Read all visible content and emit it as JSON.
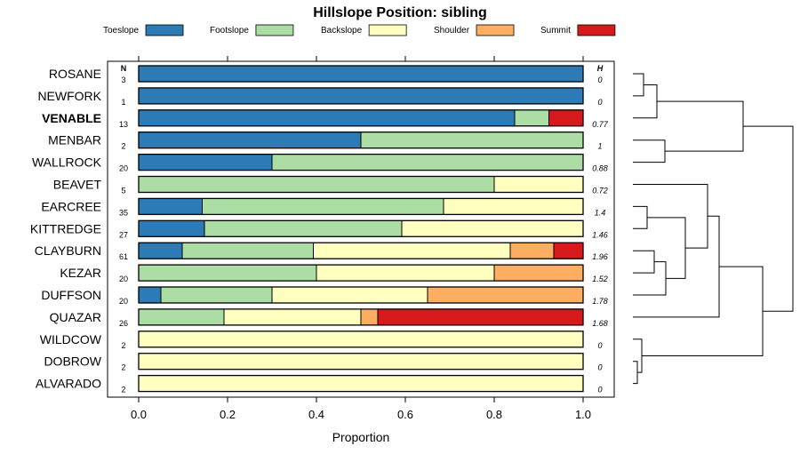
{
  "chart_data": {
    "type": "bar",
    "orientation": "horizontal-stacked",
    "title": "Hillslope Position: sibling",
    "xlabel": "Proportion",
    "xlim": [
      0,
      1
    ],
    "xticks": [
      "0.0",
      "0.2",
      "0.4",
      "0.6",
      "0.8",
      "1.0"
    ],
    "n_header": "N",
    "h_header": "H",
    "highlight": "VENABLE",
    "legend": [
      {
        "name": "Toeslope",
        "color": "#2c7bb6"
      },
      {
        "name": "Footslope",
        "color": "#abdda4"
      },
      {
        "name": "Backslope",
        "color": "#ffffbf"
      },
      {
        "name": "Shoulder",
        "color": "#fdae61"
      },
      {
        "name": "Summit",
        "color": "#d7191c"
      }
    ],
    "rows": [
      {
        "name": "ROSANE",
        "n": "3",
        "h": "0",
        "values": [
          1.0,
          0,
          0,
          0,
          0
        ]
      },
      {
        "name": "NEWFORK",
        "n": "1",
        "h": "0",
        "values": [
          1.0,
          0,
          0,
          0,
          0
        ]
      },
      {
        "name": "VENABLE",
        "n": "13",
        "h": "0.77",
        "values": [
          0.846,
          0.077,
          0,
          0,
          0.077
        ]
      },
      {
        "name": "MENBAR",
        "n": "2",
        "h": "1",
        "values": [
          0.5,
          0.5,
          0,
          0,
          0
        ]
      },
      {
        "name": "WALLROCK",
        "n": "20",
        "h": "0.88",
        "values": [
          0.3,
          0.7,
          0,
          0,
          0
        ]
      },
      {
        "name": "BEAVET",
        "n": "5",
        "h": "0.72",
        "values": [
          0,
          0.8,
          0.2,
          0,
          0
        ]
      },
      {
        "name": "EARCREE",
        "n": "35",
        "h": "1.4",
        "values": [
          0.143,
          0.543,
          0.314,
          0,
          0
        ]
      },
      {
        "name": "KITTREDGE",
        "n": "27",
        "h": "1.46",
        "values": [
          0.148,
          0.444,
          0.408,
          0,
          0
        ]
      },
      {
        "name": "CLAYBURN",
        "n": "61",
        "h": "1.96",
        "values": [
          0.098,
          0.295,
          0.443,
          0.098,
          0.066
        ]
      },
      {
        "name": "KEZAR",
        "n": "20",
        "h": "1.52",
        "values": [
          0,
          0.4,
          0.4,
          0.2,
          0
        ]
      },
      {
        "name": "DUFFSON",
        "n": "20",
        "h": "1.78",
        "values": [
          0.05,
          0.25,
          0.35,
          0.35,
          0
        ]
      },
      {
        "name": "QUAZAR",
        "n": "26",
        "h": "1.68",
        "values": [
          0,
          0.192,
          0.308,
          0.038,
          0.462
        ]
      },
      {
        "name": "WILDCOW",
        "n": "2",
        "h": "0",
        "values": [
          0,
          0,
          1.0,
          0,
          0
        ]
      },
      {
        "name": "DOBROW",
        "n": "2",
        "h": "0",
        "values": [
          0,
          0,
          1.0,
          0,
          0
        ]
      },
      {
        "name": "ALVARADO",
        "n": "2",
        "h": "0",
        "values": [
          0,
          0,
          1.0,
          0,
          0
        ]
      }
    ]
  }
}
